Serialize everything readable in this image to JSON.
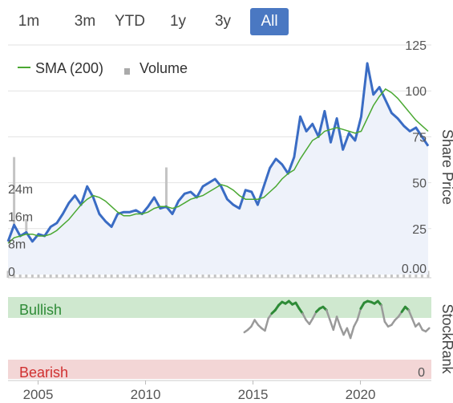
{
  "range_tabs": [
    {
      "label": "1m",
      "active": false
    },
    {
      "label": "3m",
      "active": false
    },
    {
      "label": "YTD",
      "active": false
    },
    {
      "label": "1y",
      "active": false
    },
    {
      "label": "3y",
      "active": false
    },
    {
      "label": "All",
      "active": true
    }
  ],
  "legend": {
    "sma_label": "SMA (200)",
    "volume_label": "Volume"
  },
  "colors": {
    "price": "#3a6cc4",
    "sma": "#4aa832",
    "volume": "#c4c4c4",
    "stockrank_neutral": "#9a9a9a",
    "stockrank_bullish": "#2e8b37",
    "bullish_band": "#cfe8cf",
    "bearish_band": "#f3d6d6",
    "tab_active": "#4a78c2"
  },
  "chart_data": [
    {
      "type": "line",
      "panel": "price",
      "x_start": 2003.6,
      "x_end": 2023.3,
      "ylabel": "Share Price",
      "ylim": [
        0,
        125
      ],
      "y_ticks": [
        "125",
        "100",
        "75",
        "50",
        "25",
        "0.00"
      ],
      "volume_ticks": [
        "24m",
        "16m",
        "8m",
        "0"
      ],
      "volume_ylim": [
        0,
        27
      ],
      "series": [
        {
          "name": "Share Price",
          "values": [
            18,
            27,
            21,
            23,
            18,
            22,
            21,
            26,
            28,
            33,
            39,
            43,
            38,
            48,
            42,
            33,
            29,
            26,
            33,
            34,
            34,
            35,
            33,
            37,
            42,
            36,
            37,
            33,
            40,
            44,
            45,
            42,
            48,
            50,
            52,
            48,
            41,
            38,
            36,
            46,
            45,
            38,
            48,
            58,
            63,
            60,
            55,
            64,
            86,
            78,
            82,
            75,
            89,
            72,
            85,
            68,
            77,
            73,
            86,
            115,
            98,
            102,
            95,
            88,
            85,
            81,
            78,
            80,
            75,
            70
          ]
        },
        {
          "name": "SMA (200)",
          "values": [
            17,
            20,
            21,
            22,
            22,
            21,
            21,
            22,
            24,
            27,
            30,
            34,
            38,
            41,
            43,
            42,
            40,
            37,
            34,
            32,
            32,
            33,
            33,
            34,
            36,
            37,
            37,
            36,
            37,
            39,
            41,
            42,
            43,
            45,
            47,
            49,
            48,
            46,
            43,
            41,
            41,
            41,
            42,
            45,
            48,
            52,
            55,
            57,
            63,
            68,
            73,
            75,
            78,
            79,
            80,
            79,
            78,
            77,
            78,
            85,
            92,
            97,
            101,
            99,
            96,
            92,
            88,
            84,
            81,
            78
          ]
        },
        {
          "name": "Volume",
          "values": [
            2,
            35,
            3,
            17,
            8,
            2,
            3,
            3,
            2,
            9,
            4,
            3,
            2,
            6,
            4,
            2,
            3,
            2,
            3,
            2,
            4,
            3,
            2,
            5,
            2,
            3,
            32,
            2,
            4,
            2,
            3,
            2,
            2,
            5,
            3,
            4,
            2,
            3,
            6,
            2,
            3,
            3,
            2,
            3,
            4,
            2,
            2,
            5,
            3,
            3,
            2,
            2,
            6,
            2,
            17,
            2,
            3,
            5,
            2,
            3,
            9,
            2,
            4,
            2,
            5,
            3,
            2,
            3,
            8,
            2
          ]
        }
      ],
      "x_ticks": [
        "2005",
        "2010",
        "2015",
        "2020"
      ],
      "x_tick_values": [
        2005,
        2010,
        2015,
        2020
      ]
    },
    {
      "type": "line",
      "panel": "stockrank",
      "ylabel": "StockRank",
      "band_labels": {
        "top": "Bullish",
        "bottom": "Bearish"
      },
      "bottom_tick": "0",
      "ylim": [
        0,
        100
      ],
      "x_start": 2014.6,
      "x_end": 2023.2,
      "values": [
        55,
        58,
        62,
        70,
        64,
        60,
        57,
        72,
        78,
        82,
        88,
        92,
        90,
        93,
        89,
        91,
        84,
        78,
        70,
        65,
        72,
        80,
        84,
        86,
        82,
        70,
        58,
        74,
        62,
        52,
        60,
        48,
        62,
        70,
        84,
        91,
        93,
        92,
        90,
        93,
        88,
        68,
        62,
        64,
        70,
        74,
        80,
        86,
        82,
        72,
        62,
        66,
        58,
        56,
        60
      ]
    }
  ]
}
